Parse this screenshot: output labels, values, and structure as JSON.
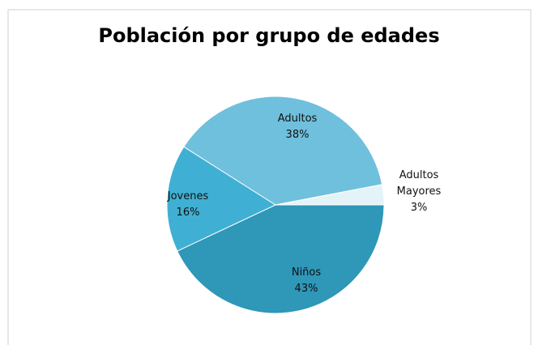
{
  "chart_data": {
    "type": "pie",
    "title": "Población por grupo de edades",
    "categories": [
      "Niños",
      "Jovenes",
      "Adultos",
      "Adultos Mayores"
    ],
    "values": [
      43,
      16,
      38,
      3
    ],
    "value_labels": [
      "43%",
      "16%",
      "38%",
      "3%"
    ],
    "colors": [
      "#2f97b8",
      "#3fb0d3",
      "#6fc0dc",
      "#e4f3f7"
    ]
  }
}
